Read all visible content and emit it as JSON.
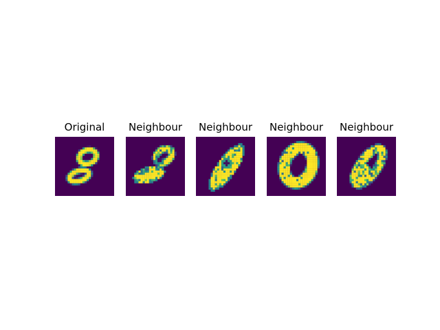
{
  "chart_data": {
    "type": "heatmap",
    "colormap": "viridis",
    "background_color": "#440154",
    "panels": [
      {
        "title": "Original",
        "depicts": "digit 8"
      },
      {
        "title": "Neighbour"
      },
      {
        "title": "Neighbour"
      },
      {
        "title": "Neighbour"
      },
      {
        "title": "Neighbour"
      }
    ]
  }
}
